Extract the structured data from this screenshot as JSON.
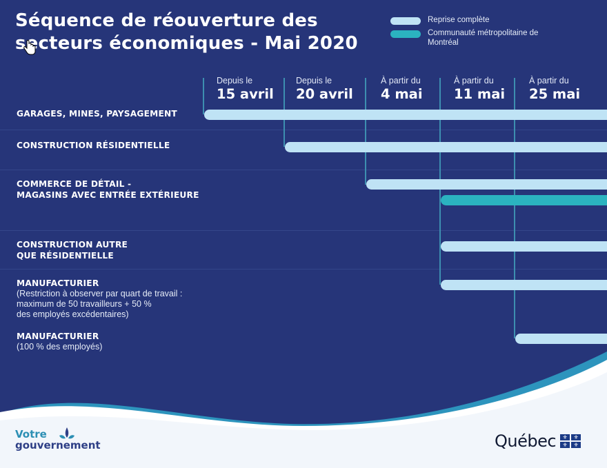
{
  "title": "Séquence de réouverture des secteurs économiques - Mai 2020",
  "legend": [
    {
      "label": "Reprise complète",
      "color": "#bfe3f5"
    },
    {
      "label": "Communauté métropolitaine de Montréal",
      "color": "#2bb3c0"
    }
  ],
  "chart_data": {
    "type": "gantt",
    "columns": [
      {
        "small": "Depuis le",
        "big": "15 avril"
      },
      {
        "small": "Depuis le",
        "big": "20 avril"
      },
      {
        "small": "À partir du",
        "big": "4 mai"
      },
      {
        "small": "À partir du",
        "big": "11 mai"
      },
      {
        "small": "À partir du",
        "big": "25 mai"
      }
    ],
    "rows": [
      {
        "title": "GARAGES, MINES, PAYSAGEMENT",
        "note": "",
        "bars": [
          {
            "start": "15 avril",
            "series": "Reprise complète"
          }
        ]
      },
      {
        "title": "CONSTRUCTION RÉSIDENTIELLE",
        "note": "",
        "bars": [
          {
            "start": "20 avril",
            "series": "Reprise complète"
          }
        ]
      },
      {
        "title": "COMMERCE DE DÉTAIL -\nMAGASINS AVEC ENTRÉE EXTÉRIEURE",
        "note": "",
        "bars": [
          {
            "start": "4 mai",
            "series": "Reprise complète"
          },
          {
            "start": "11 mai",
            "series": "Communauté métropolitaine de Montréal"
          }
        ]
      },
      {
        "title": "CONSTRUCTION AUTRE\nQUE RÉSIDENTIELLE",
        "note": "",
        "bars": [
          {
            "start": "11 mai",
            "series": "Reprise complète"
          }
        ]
      },
      {
        "title": "MANUFACTURIER",
        "note": "(Restriction à observer par quart de travail :\nmaximum de 50 travailleurs + 50 %\ndes employés excédentaires)",
        "bars": [
          {
            "start": "11 mai",
            "series": "Reprise complète"
          }
        ]
      },
      {
        "title": "MANUFACTURIER",
        "note": "(100 % des employés)",
        "bars": [
          {
            "start": "25 mai",
            "series": "Reprise complète"
          }
        ]
      }
    ]
  },
  "footer": {
    "votre_line1": "Votre",
    "votre_line2": "gouvernement",
    "quebec": "Québec"
  }
}
